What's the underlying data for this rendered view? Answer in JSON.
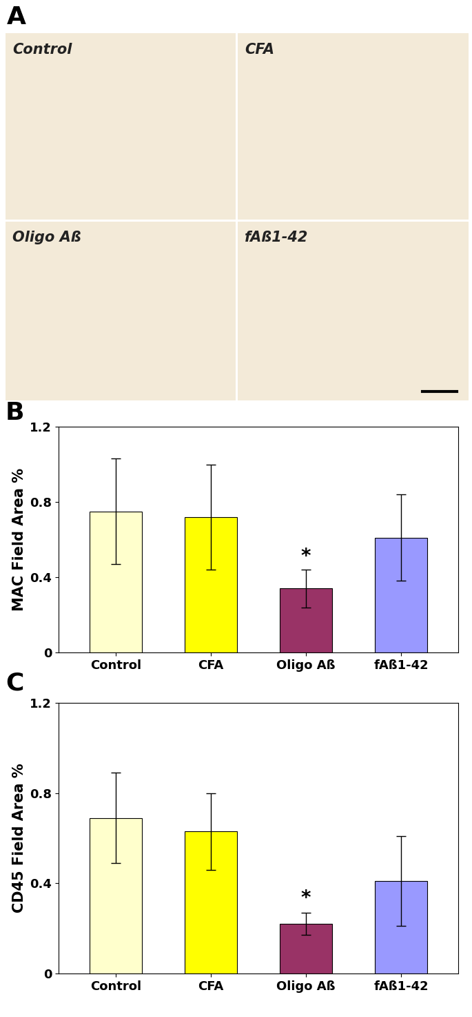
{
  "image_panel": {
    "panel_label": "A",
    "titles": [
      "Control",
      "CFA",
      "Oligo Aß",
      "fAß1-42"
    ]
  },
  "chart_data": [
    {
      "type": "bar",
      "panel_label": "B",
      "categories": [
        "Control",
        "CFA",
        "Oligo Aß",
        "fAß1-42"
      ],
      "values": [
        0.75,
        0.72,
        0.34,
        0.61
      ],
      "errors": [
        0.28,
        0.28,
        0.1,
        0.23
      ],
      "colors": [
        "#ffffcc",
        "#ffff00",
        "#993366",
        "#9999ff"
      ],
      "y_label": "MAC Field Area %",
      "ylim": [
        0,
        1.2
      ],
      "yticks": [
        0,
        0.4,
        0.8,
        1.2
      ],
      "annotations": [
        {
          "text": "*",
          "category": "Oligo Aß"
        }
      ]
    },
    {
      "type": "bar",
      "panel_label": "C",
      "categories": [
        "Control",
        "CFA",
        "Oligo Aß",
        "fAß1-42"
      ],
      "values": [
        0.69,
        0.63,
        0.22,
        0.41
      ],
      "errors": [
        0.2,
        0.17,
        0.05,
        0.2
      ],
      "colors": [
        "#ffffcc",
        "#ffff00",
        "#993366",
        "#9999ff"
      ],
      "y_label": "CD45 Field Area %",
      "ylim": [
        0,
        1.2
      ],
      "yticks": [
        0,
        0.4,
        0.8,
        1.2
      ],
      "annotations": [
        {
          "text": "*",
          "category": "Oligo Aß"
        }
      ]
    }
  ]
}
